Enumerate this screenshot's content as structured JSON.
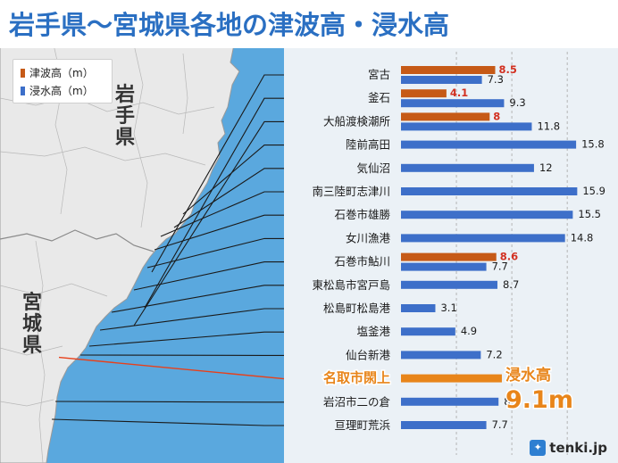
{
  "title": "岩手県〜宮城県各地の津波高・浸水高",
  "legend": {
    "tsunami_label": "津波高（m）",
    "inundation_label": "浸水高（m）"
  },
  "prefectures": {
    "iwate": "岩手県",
    "miyagi": "宮城県"
  },
  "highlight": {
    "label": "浸水高",
    "value": "9.1m"
  },
  "brand": "tenki.jp",
  "colors": {
    "tsunami": "#c65a17",
    "inundation": "#3d6fc9",
    "highlight": "#e8851a",
    "sea": "#5aa8de",
    "land": "#e8e8e8",
    "title": "#2a6fc2"
  },
  "chart_data": {
    "type": "bar",
    "orientation": "horizontal",
    "xlim": [
      0,
      17
    ],
    "series": [
      {
        "name": "津波高（m）",
        "values": [
          8.5,
          4.1,
          8,
          null,
          null,
          null,
          null,
          null,
          8.6,
          null,
          null,
          null,
          null,
          null,
          null,
          null
        ]
      },
      {
        "name": "浸水高（m）",
        "values": [
          7.3,
          9.3,
          11.8,
          15.8,
          12,
          15.9,
          15.5,
          14.8,
          7.7,
          8.7,
          3.1,
          4.9,
          7.2,
          9.1,
          8.8,
          7.7
        ]
      }
    ],
    "categories": [
      "宮古",
      "釜石",
      "大船渡検潮所",
      "陸前高田",
      "気仙沼",
      "南三陸町志津川",
      "石巻市雄勝",
      "女川漁港",
      "石巻市鮎川",
      "東松島市宮戸島",
      "松島町松島港",
      "塩釜港",
      "仙台新港",
      "名取市閖上",
      "岩沼市二の倉",
      "亘理町荒浜"
    ],
    "value_labels": {
      "tsunami": [
        "8.5",
        "4.1",
        "8",
        "",
        "",
        "",
        "",
        "",
        "8.6",
        "",
        "",
        "",
        "",
        "",
        "",
        ""
      ],
      "inundation": [
        "7.3",
        "9.3",
        "11.8",
        "15.8",
        "12",
        "15.9",
        "15.5",
        "14.8",
        "7.7",
        "8.7",
        "3.1",
        "4.9",
        "7.2",
        "",
        "8.8",
        "7.7"
      ]
    },
    "highlighted_category": "名取市閖上"
  }
}
